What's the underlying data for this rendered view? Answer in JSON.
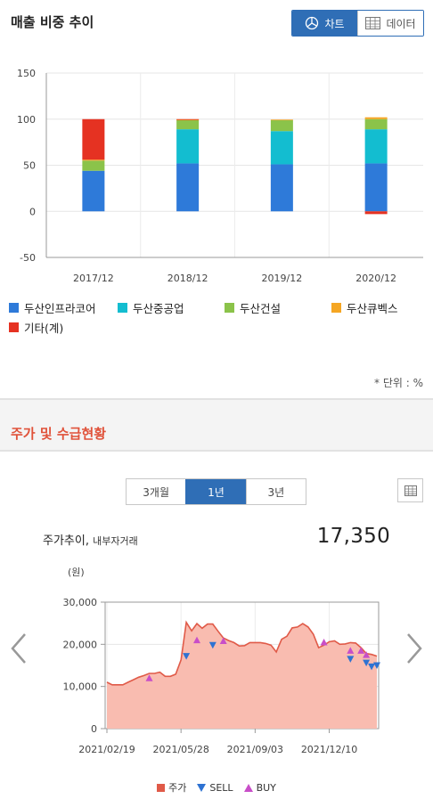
{
  "section1": {
    "title": "매출 비중 추이",
    "toggle": {
      "chart_label": "차트",
      "data_label": "데이터"
    },
    "unit": "* 단위 : %"
  },
  "section2": {
    "title": "주가 및 수급현황",
    "periods": [
      "3개월",
      "1년",
      "3년"
    ],
    "active_period": "1년",
    "stock_title": "주가추이,",
    "stock_subtitle": "내부자거래",
    "price": "17,350",
    "legend": {
      "price": "주가",
      "sell": "SELL",
      "buy": "BUY"
    }
  },
  "colors": {
    "accent": "#2f6eb6",
    "section_title": "#e0523a",
    "area_fill": "#f9bcb0",
    "area_line": "#e05a48",
    "sell": "#2e72d2",
    "buy": "#c84ec8"
  },
  "chart_data": [
    {
      "type": "bar",
      "stacked": true,
      "categories": [
        "2017/12",
        "2018/12",
        "2019/12",
        "2020/12"
      ],
      "ylim": [
        -50,
        150
      ],
      "yticks": [
        -50,
        0,
        50,
        100,
        150
      ],
      "grid": true,
      "legend_position": "bottom",
      "series": [
        {
          "name": "두산인프라코어",
          "color": "#2e7ad9",
          "values": [
            44,
            52,
            51,
            52
          ]
        },
        {
          "name": "두산중공업",
          "color": "#13bdd0",
          "values": [
            0,
            37,
            36,
            37
          ]
        },
        {
          "name": "두산건설",
          "color": "#8bc34a",
          "values": [
            11,
            10,
            12,
            11
          ]
        },
        {
          "name": "두산큐벡스",
          "color": "#f5a623",
          "values": [
            1,
            0.5,
            0.5,
            2
          ]
        },
        {
          "name": "기타(계)",
          "color": "#e53222",
          "values": [
            44,
            0.5,
            0,
            -3
          ]
        }
      ]
    },
    {
      "type": "area",
      "ylabel": "(원)",
      "ylim": [
        0,
        30000
      ],
      "yticks": [
        "0",
        "10,000",
        "20,000",
        "30,000"
      ],
      "xlabels": [
        "2021/02/19",
        "2021/05/28",
        "2021/09/03",
        "2021/12/10"
      ],
      "xlabel_positions": [
        0,
        14,
        28,
        42
      ],
      "x_count": 52,
      "grid": true,
      "legend_position": "bottom",
      "series": [
        {
          "name": "주가",
          "values": [
            11000,
            10400,
            10400,
            10400,
            11000,
            11600,
            12200,
            12600,
            13100,
            13100,
            13400,
            12400,
            12400,
            12900,
            16300,
            25200,
            23200,
            24900,
            23800,
            24800,
            24800,
            23100,
            21500,
            20900,
            20400,
            19600,
            19700,
            20400,
            20400,
            20400,
            20200,
            19800,
            18200,
            21200,
            21900,
            23900,
            24100,
            24900,
            24100,
            22400,
            19200,
            19800,
            20600,
            20800,
            20000,
            20100,
            20400,
            20300,
            19200,
            17800,
            17600,
            17200
          ]
        }
      ],
      "sell_markers": [
        {
          "x": 15,
          "y": 17200
        },
        {
          "x": 20,
          "y": 19800
        },
        {
          "x": 46,
          "y": 16500
        },
        {
          "x": 49,
          "y": 15600
        },
        {
          "x": 50,
          "y": 14700
        },
        {
          "x": 51,
          "y": 15000
        }
      ],
      "buy_markers": [
        {
          "x": 8,
          "y": 12000
        },
        {
          "x": 17,
          "y": 21000
        },
        {
          "x": 22,
          "y": 20800
        },
        {
          "x": 41,
          "y": 20500
        },
        {
          "x": 46,
          "y": 18500
        },
        {
          "x": 48,
          "y": 18500
        },
        {
          "x": 49,
          "y": 17500
        }
      ]
    }
  ]
}
